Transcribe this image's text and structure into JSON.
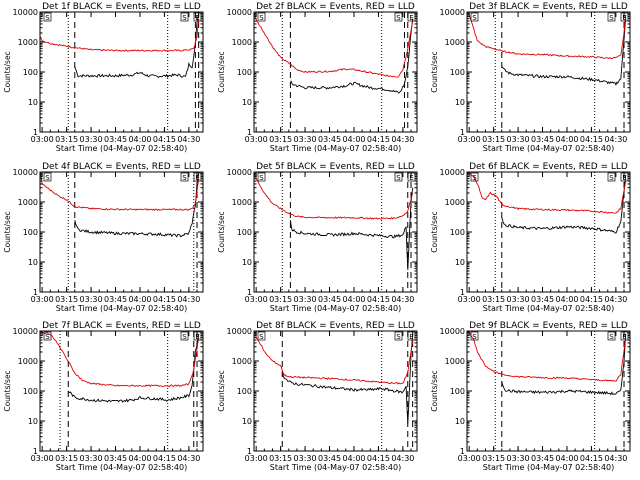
{
  "figure": {
    "colors": {
      "events": "#000000",
      "lld": "#e00000",
      "axes": "#000000",
      "background": "#ffffff"
    },
    "shared": {
      "type": "line",
      "xlabel": "Start Time (04-May-07 02:58:40)",
      "ylabel": "Counts/sec",
      "y_scale": "log",
      "ylim": [
        1,
        10000
      ],
      "y_ticks": [
        1,
        10,
        100,
        1000,
        10000
      ],
      "y_tick_labels": [
        "1",
        "10",
        "100",
        "1000",
        "10000"
      ],
      "xlim": [
        "02:58:40",
        "04:38:40"
      ],
      "x_ticks": [
        "03:00",
        "03:15",
        "03:30",
        "03:45",
        "04:00",
        "04:15",
        "04:30"
      ],
      "legend": "Black = Events, Red = LLD (in title)"
    }
  },
  "chart_data": [
    {
      "title": "Det 1f BLACK = Events, RED = LLD",
      "type": "line",
      "marker_labels": [
        "S",
        "S",
        "E"
      ],
      "dotted_lines": [
        "03:16",
        "04:17"
      ],
      "dashed_lines": [
        "03:20",
        "04:34",
        "04:36"
      ],
      "series": [
        {
          "name": "Events",
          "x": [
            "03:20",
            "03:22",
            "03:30",
            "03:45",
            "03:55",
            "04:00",
            "04:05",
            "04:10",
            "04:17",
            "04:23",
            "04:28",
            "04:30",
            "04:32",
            "04:34",
            "04:35",
            "04:36"
          ],
          "y": [
            150,
            75,
            75,
            75,
            80,
            95,
            75,
            72,
            75,
            80,
            70,
            180,
            150,
            800,
            5000,
            9000
          ]
        },
        {
          "name": "LLD",
          "x": [
            "02:59",
            "03:00",
            "03:05",
            "03:10",
            "03:20",
            "03:30",
            "03:45",
            "04:00",
            "04:15",
            "04:25",
            "04:30",
            "04:33",
            "04:35",
            "04:36"
          ],
          "y": [
            1500,
            1100,
            900,
            800,
            650,
            550,
            520,
            520,
            520,
            520,
            550,
            600,
            1500,
            6000
          ]
        }
      ]
    },
    {
      "title": "Det 2f BLACK = Events, RED = LLD",
      "type": "line",
      "marker_labels": [
        "S",
        "S",
        "E"
      ],
      "dotted_lines": [
        "03:16",
        "04:17"
      ],
      "dashed_lines": [
        "03:21",
        "04:31",
        "04:33"
      ],
      "series": [
        {
          "name": "Events",
          "x": [
            "03:21",
            "03:22",
            "03:25",
            "03:30",
            "03:45",
            "03:55",
            "04:00",
            "04:05",
            "04:10",
            "04:17",
            "04:22",
            "04:28",
            "04:31",
            "04:33",
            "04:35",
            "04:36"
          ],
          "y": [
            50,
            40,
            35,
            30,
            30,
            35,
            42,
            35,
            30,
            28,
            25,
            20,
            40,
            150,
            2000,
            6000
          ]
        },
        {
          "name": "LLD",
          "x": [
            "02:59",
            "03:00",
            "03:05",
            "03:10",
            "03:15",
            "03:20",
            "03:25",
            "03:30",
            "03:45",
            "03:55",
            "04:00",
            "04:10",
            "04:20",
            "04:27",
            "04:30",
            "04:33",
            "04:36"
          ],
          "y": [
            9000,
            5500,
            2000,
            700,
            300,
            200,
            120,
            100,
            105,
            125,
            120,
            95,
            75,
            70,
            120,
            600,
            5000
          ]
        }
      ]
    },
    {
      "title": "Det 3f BLACK = Events, RED = LLD",
      "type": "line",
      "marker_labels": [
        "S",
        "S",
        "E"
      ],
      "dotted_lines": [
        "03:16",
        "04:17"
      ],
      "dashed_lines": [
        "03:20",
        "04:35"
      ],
      "series": [
        {
          "name": "Events",
          "x": [
            "03:20",
            "03:22",
            "03:25",
            "03:30",
            "03:45",
            "04:00",
            "04:10",
            "04:17",
            "04:25",
            "04:30",
            "04:33",
            "04:35",
            "04:36"
          ],
          "y": [
            150,
            110,
            90,
            80,
            70,
            70,
            60,
            55,
            45,
            40,
            60,
            1200,
            7000
          ]
        },
        {
          "name": "LLD",
          "x": [
            "02:59",
            "03:00",
            "03:03",
            "03:05",
            "03:10",
            "03:15",
            "03:20",
            "03:30",
            "03:45",
            "04:00",
            "04:15",
            "04:25",
            "04:30",
            "04:33",
            "04:35",
            "04:36"
          ],
          "y": [
            9500,
            8000,
            2500,
            1100,
            700,
            600,
            500,
            400,
            380,
            340,
            320,
            290,
            300,
            350,
            2000,
            8000
          ]
        }
      ]
    },
    {
      "title": "Det 4f BLACK = Events, RED = LLD",
      "type": "line",
      "marker_labels": [
        "S",
        "S",
        "E"
      ],
      "dotted_lines": [
        "03:16",
        "04:33"
      ],
      "dashed_lines": [
        "03:20",
        "04:35"
      ],
      "series": [
        {
          "name": "Events",
          "x": [
            "03:20",
            "03:22",
            "03:25",
            "03:30",
            "03:45",
            "04:00",
            "04:10",
            "04:17",
            "04:25",
            "04:30",
            "04:32",
            "04:34",
            "04:35",
            "04:36"
          ],
          "y": [
            250,
            120,
            110,
            100,
            90,
            88,
            85,
            80,
            75,
            90,
            200,
            800,
            4000,
            9000
          ]
        },
        {
          "name": "LLD",
          "x": [
            "02:59",
            "03:00",
            "03:05",
            "03:10",
            "03:15",
            "03:20",
            "03:30",
            "03:45",
            "04:00",
            "04:15",
            "04:25",
            "04:30",
            "04:32",
            "04:34",
            "04:36"
          ],
          "y": [
            9000,
            4000,
            2500,
            1600,
            1200,
            700,
            600,
            570,
            560,
            560,
            560,
            560,
            600,
            900,
            6000
          ]
        }
      ]
    },
    {
      "title": "Det 5f BLACK = Events, RED = LLD",
      "type": "line",
      "marker_labels": [
        "S",
        "S",
        "E"
      ],
      "dotted_lines": [
        "03:16",
        "04:17"
      ],
      "dashed_lines": [
        "03:21",
        "04:33",
        "04:35"
      ],
      "series": [
        {
          "name": "Events",
          "x": [
            "03:21",
            "03:22",
            "03:25",
            "03:30",
            "03:45",
            "03:55",
            "04:00",
            "04:05",
            "04:10",
            "04:17",
            "04:25",
            "04:30",
            "04:32",
            "04:33",
            "04:35",
            "04:36"
          ],
          "y": [
            250,
            120,
            100,
            90,
            80,
            85,
            90,
            85,
            80,
            75,
            70,
            80,
            150,
            6,
            1000,
            3000
          ]
        },
        {
          "name": "LLD",
          "x": [
            "02:59",
            "03:00",
            "03:05",
            "03:10",
            "03:15",
            "03:20",
            "03:25",
            "03:30",
            "03:45",
            "04:00",
            "04:15",
            "04:25",
            "04:30",
            "04:33",
            "04:36"
          ],
          "y": [
            9000,
            6000,
            2000,
            900,
            600,
            420,
            330,
            310,
            300,
            300,
            280,
            290,
            350,
            500,
            2000
          ]
        }
      ]
    },
    {
      "title": "Det 6f BLACK = Events, RED = LLD",
      "type": "line",
      "marker_labels": [
        "S",
        "S",
        "E"
      ],
      "dotted_lines": [
        "03:16",
        "04:17"
      ],
      "dashed_lines": [
        "03:20",
        "04:35"
      ],
      "series": [
        {
          "name": "Events",
          "x": [
            "03:20",
            "03:22",
            "03:25",
            "03:30",
            "03:45",
            "03:55",
            "04:00",
            "04:10",
            "04:17",
            "04:25",
            "04:30",
            "04:33",
            "04:35",
            "04:36"
          ],
          "y": [
            300,
            170,
            160,
            140,
            130,
            140,
            150,
            140,
            130,
            110,
            100,
            220,
            2000,
            8000
          ]
        },
        {
          "name": "LLD",
          "x": [
            "02:59",
            "03:00",
            "03:03",
            "03:06",
            "03:08",
            "03:10",
            "03:13",
            "03:17",
            "03:20",
            "03:30",
            "03:45",
            "04:00",
            "04:15",
            "04:25",
            "04:30",
            "04:33",
            "04:36"
          ],
          "y": [
            9500,
            9000,
            7000,
            3000,
            1300,
            1200,
            2000,
            1500,
            800,
            600,
            560,
            540,
            500,
            450,
            430,
            600,
            5000
          ]
        }
      ]
    },
    {
      "title": "Det 7f BLACK = Events, RED = LLD",
      "type": "line",
      "marker_labels": [
        "S",
        "S",
        "E"
      ],
      "dotted_lines": [
        "03:11",
        "04:17"
      ],
      "dashed_lines": [
        "03:16",
        "04:33",
        "04:35"
      ],
      "series": [
        {
          "name": "Events",
          "x": [
            "03:16",
            "03:18",
            "03:20",
            "03:25",
            "03:30",
            "03:45",
            "03:55",
            "04:00",
            "04:10",
            "04:17",
            "04:25",
            "04:30",
            "04:32",
            "04:34",
            "04:36"
          ],
          "y": [
            100,
            80,
            60,
            55,
            50,
            45,
            50,
            60,
            55,
            50,
            60,
            70,
            150,
            2000,
            8000
          ]
        },
        {
          "name": "LLD",
          "x": [
            "02:59",
            "03:00",
            "03:05",
            "03:10",
            "03:15",
            "03:20",
            "03:25",
            "03:30",
            "03:45",
            "04:00",
            "04:10",
            "04:17",
            "04:25",
            "04:30",
            "04:33",
            "04:36"
          ],
          "y": [
            9500,
            9000,
            8000,
            3500,
            1200,
            400,
            220,
            180,
            150,
            150,
            150,
            150,
            150,
            170,
            500,
            6000
          ]
        }
      ]
    },
    {
      "title": "Det 8f BLACK = Events, RED = LLD",
      "type": "line",
      "marker_labels": [
        "S",
        "S",
        "E"
      ],
      "dotted_lines": [
        "04:17"
      ],
      "dashed_lines": [
        "03:16",
        "04:33",
        "04:36"
      ],
      "series": [
        {
          "name": "Events",
          "x": [
            "03:16",
            "03:17",
            "03:20",
            "03:25",
            "03:30",
            "03:45",
            "04:00",
            "04:10",
            "04:17",
            "04:25",
            "04:30",
            "04:32",
            "04:33",
            "04:35",
            "04:36"
          ],
          "y": [
            400,
            300,
            200,
            170,
            160,
            130,
            110,
            110,
            120,
            100,
            90,
            150,
            8,
            1500,
            8000
          ]
        },
        {
          "name": "LLD",
          "x": [
            "02:59",
            "03:00",
            "03:03",
            "03:05",
            "03:10",
            "03:15",
            "03:17",
            "03:20",
            "03:30",
            "03:45",
            "04:00",
            "04:15",
            "04:25",
            "04:30",
            "04:33",
            "04:36"
          ],
          "y": [
            9500,
            6000,
            3500,
            2000,
            1000,
            700,
            350,
            300,
            280,
            260,
            230,
            200,
            180,
            180,
            400,
            5000
          ]
        }
      ]
    },
    {
      "title": "Det 9f BLACK = Events, RED = LLD",
      "type": "line",
      "marker_labels": [
        "S",
        "S",
        "E"
      ],
      "dotted_lines": [
        "03:16",
        "04:17"
      ],
      "dashed_lines": [
        "03:20",
        "04:35"
      ],
      "series": [
        {
          "name": "Events",
          "x": [
            "03:20",
            "03:22",
            "03:25",
            "03:30",
            "03:45",
            "03:55",
            "04:00",
            "04:10",
            "04:17",
            "04:25",
            "04:30",
            "04:33",
            "04:35",
            "04:36"
          ],
          "y": [
            200,
            110,
            100,
            95,
            90,
            95,
            100,
            95,
            90,
            85,
            80,
            100,
            1000,
            8000
          ]
        },
        {
          "name": "LLD",
          "x": [
            "02:59",
            "03:00",
            "03:03",
            "03:05",
            "03:10",
            "03:15",
            "03:20",
            "03:30",
            "03:45",
            "04:00",
            "04:15",
            "04:25",
            "04:30",
            "04:33",
            "04:36"
          ],
          "y": [
            9500,
            9000,
            5000,
            2000,
            700,
            450,
            350,
            300,
            280,
            270,
            240,
            220,
            220,
            350,
            6000
          ]
        }
      ]
    }
  ]
}
